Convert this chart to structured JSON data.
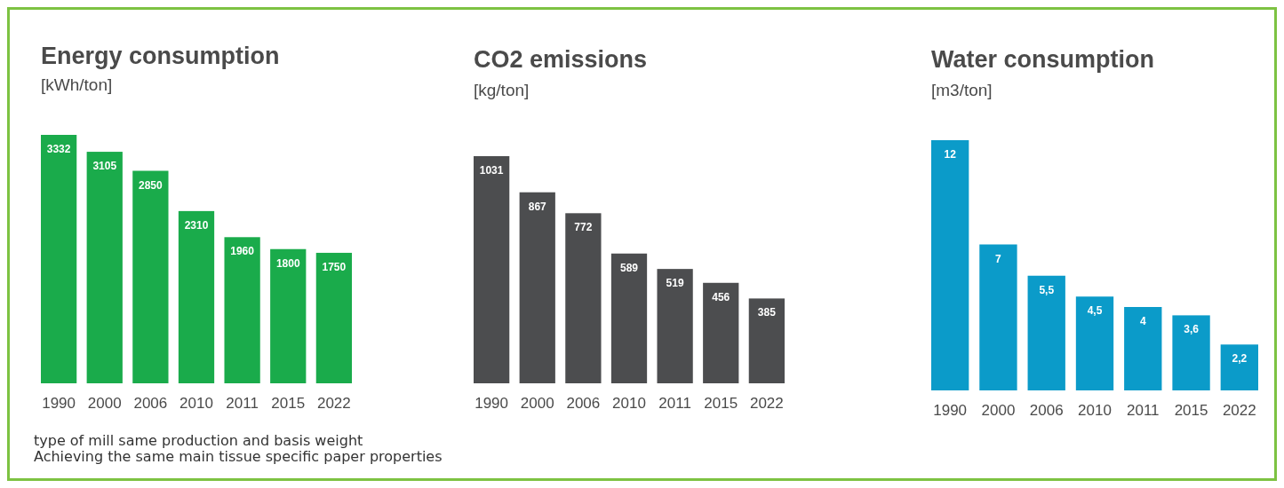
{
  "chart_data": [
    {
      "type": "bar",
      "title": "Energy consumption",
      "subtitle": "[kWh/ton]",
      "categories": [
        "1990",
        "2000",
        "2006",
        "2010",
        "2011",
        "2015",
        "2022"
      ],
      "values": [
        3332,
        3105,
        2850,
        2310,
        1960,
        1800,
        1750
      ],
      "color": "#1aab4b",
      "data_labels": true,
      "annotations": [
        "type of mill same production and basis weight",
        "Achieving the same main tissue specific paper properties"
      ]
    },
    {
      "type": "bar",
      "title": "CO2 emissions",
      "subtitle": "[kg/ton]",
      "categories": [
        "1990",
        "2000",
        "2006",
        "2010",
        "2011",
        "2015",
        "2022"
      ],
      "values": [
        1031,
        867,
        772,
        589,
        519,
        456,
        385
      ],
      "color": "#4c4d4f",
      "data_labels": true
    },
    {
      "type": "bar",
      "title": "Water consumption",
      "subtitle": "[m3/ton]",
      "categories": [
        "1990",
        "2000",
        "2006",
        "2010",
        "2011",
        "2015",
        "2022"
      ],
      "values": [
        12,
        7,
        5.5,
        4.5,
        4,
        3.6,
        2.2
      ],
      "value_labels": [
        "12",
        "7",
        "5,5",
        "4,5",
        "4",
        "3,6",
        "2,2"
      ],
      "color": "#0b9bc9"
    }
  ]
}
